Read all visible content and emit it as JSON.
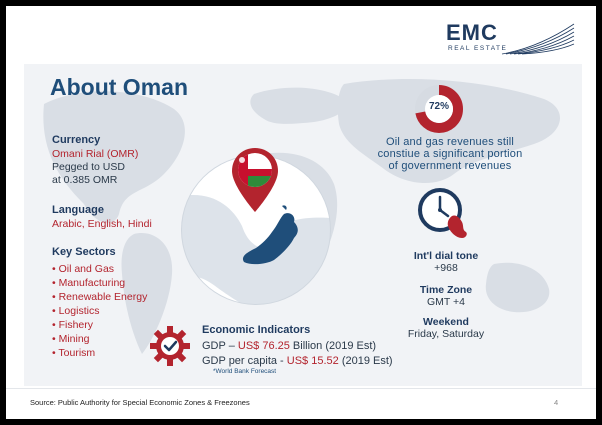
{
  "logo": {
    "name": "EMC",
    "sub": "REAL ESTATE"
  },
  "title": "About Oman",
  "currency": {
    "heading": "Currency",
    "name": "Omani Rial (OMR)",
    "line1": "Pegged to USD",
    "line2": "at 0.385 OMR"
  },
  "language": {
    "heading": "Language",
    "value": "Arabic, English, Hindi"
  },
  "sectors": {
    "heading": "Key Sectors",
    "items": [
      "• Oil and Gas",
      "• Manufacturing",
      "• Renewable Energy",
      "• Logistics",
      "• Fishery",
      "• Mining",
      "• Tourism"
    ]
  },
  "oil": {
    "percent": "72%",
    "fraction": 0.72,
    "line1": "Oil and gas revenues still",
    "line2": "constiue a significant portion",
    "line3": "of government revenues"
  },
  "dial": {
    "heading": "Int'l dial tone",
    "value": "+968"
  },
  "timezone": {
    "heading": "Time Zone",
    "value": "GMT +4"
  },
  "weekend": {
    "heading": "Weekend",
    "value": "Friday, Saturday"
  },
  "economic": {
    "heading": "Economic Indicators",
    "gdp_label": "GDP – ",
    "gdp_value": "US$ 76.25 ",
    "gdp_rest": "Billion (2019 Est)",
    "percap_label": "GDP per capita - ",
    "percap_value": "US$ 15.52 ",
    "percap_rest": "(2019 Est)",
    "footnote": "*World Bank Forecast"
  },
  "footer": {
    "source": "Source: Public Authority for Special Economic Zones & Freezones",
    "page": "4"
  },
  "colors": {
    "navy": "#1f3a5f",
    "red": "#b3242e",
    "flag_green": "#2e8b3a",
    "oman_blue": "#1f4e7a"
  }
}
